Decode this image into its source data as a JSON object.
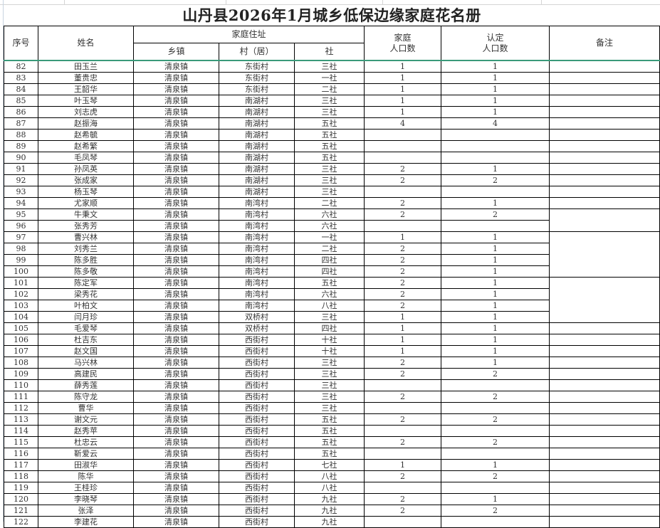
{
  "title": "山丹县2026年1月城乡低保边缘家庭花名册",
  "headers": {
    "seq": "序号",
    "name": "姓名",
    "address": "家庭住址",
    "town": "乡镇",
    "village": "村（居）",
    "she": "社",
    "household": "家庭\n人口数",
    "household_l1": "家庭",
    "household_l2": "人口数",
    "certified_l1": "认定",
    "certified_l2": "人口数",
    "remarks": "备注"
  },
  "rows": [
    [
      "82",
      "田玉兰",
      "清泉镇",
      "东街村",
      "三社",
      "1",
      "1"
    ],
    [
      "83",
      "董贵忠",
      "清泉镇",
      "东街村",
      "一社",
      "1",
      "1"
    ],
    [
      "84",
      "王韶华",
      "清泉镇",
      "东街村",
      "二社",
      "1",
      "1"
    ],
    [
      "85",
      "叶玉琴",
      "清泉镇",
      "南湖村",
      "三社",
      "1",
      "1"
    ],
    [
      "86",
      "刘志虎",
      "清泉镇",
      "南湖村",
      "三社",
      "1",
      "1"
    ],
    [
      "87",
      "赵振海",
      "清泉镇",
      "南湖村",
      "五社",
      "4",
      "4"
    ],
    [
      "88",
      "赵希毓",
      "清泉镇",
      "南湖村",
      "五社",
      "",
      ""
    ],
    [
      "89",
      "赵希繁",
      "清泉镇",
      "南湖村",
      "五社",
      "",
      ""
    ],
    [
      "90",
      "毛凤琴",
      "清泉镇",
      "南湖村",
      "五社",
      "",
      ""
    ],
    [
      "91",
      "孙凤英",
      "清泉镇",
      "南湖村",
      "三社",
      "2",
      "1"
    ],
    [
      "92",
      "张成家",
      "清泉镇",
      "南湖村",
      "三社",
      "2",
      "2"
    ],
    [
      "93",
      "杨玉琴",
      "清泉镇",
      "南湖村",
      "三社",
      "",
      ""
    ],
    [
      "94",
      "尤家顺",
      "清泉镇",
      "南湾村",
      "二社",
      "2",
      "1"
    ],
    [
      "95",
      "牛秉文",
      "清泉镇",
      "南湾村",
      "六社",
      "2",
      "2"
    ],
    [
      "96",
      "张秀芳",
      "清泉镇",
      "南湾村",
      "六社",
      "",
      ""
    ],
    [
      "97",
      "曹兴林",
      "清泉镇",
      "南湾村",
      "一社",
      "1",
      "1"
    ],
    [
      "98",
      "刘秀兰",
      "清泉镇",
      "南湾村",
      "二社",
      "2",
      "1"
    ],
    [
      "99",
      "陈多胜",
      "清泉镇",
      "南湾村",
      "四社",
      "2",
      "1"
    ],
    [
      "100",
      "陈多敬",
      "清泉镇",
      "南湾村",
      "四社",
      "2",
      "1"
    ],
    [
      "101",
      "陈定军",
      "清泉镇",
      "南湾村",
      "五社",
      "2",
      "1"
    ],
    [
      "102",
      "梁秀花",
      "清泉镇",
      "南湾村",
      "六社",
      "2",
      "1"
    ],
    [
      "103",
      "叶柏文",
      "清泉镇",
      "南湾村",
      "八社",
      "2",
      "1"
    ],
    [
      "104",
      "闫月珍",
      "清泉镇",
      "双桥村",
      "三社",
      "1",
      "1"
    ],
    [
      "105",
      "毛爱琴",
      "清泉镇",
      "双桥村",
      "四社",
      "1",
      "1"
    ],
    [
      "106",
      "杜吉东",
      "清泉镇",
      "西街村",
      "十社",
      "1",
      "1"
    ],
    [
      "107",
      "赵文国",
      "清泉镇",
      "西街村",
      "十社",
      "1",
      "1"
    ],
    [
      "108",
      "马兴林",
      "清泉镇",
      "西街村",
      "三社",
      "2",
      "1"
    ],
    [
      "109",
      "高建民",
      "清泉镇",
      "西街村",
      "三社",
      "2",
      "2"
    ],
    [
      "110",
      "薛秀莲",
      "清泉镇",
      "西街村",
      "三社",
      "",
      ""
    ],
    [
      "111",
      "陈守龙",
      "清泉镇",
      "西街村",
      "三社",
      "2",
      "2"
    ],
    [
      "112",
      "曹华",
      "清泉镇",
      "西街村",
      "三社",
      "",
      ""
    ],
    [
      "113",
      "谢文元",
      "清泉镇",
      "西街村",
      "五社",
      "2",
      "2"
    ],
    [
      "114",
      "赵秀苹",
      "清泉镇",
      "西街村",
      "五社",
      "",
      ""
    ],
    [
      "115",
      "杜忠云",
      "清泉镇",
      "西街村",
      "五社",
      "2",
      "2"
    ],
    [
      "116",
      "靳爱云",
      "清泉镇",
      "西街村",
      "五社",
      "",
      ""
    ],
    [
      "117",
      "田淑华",
      "清泉镇",
      "西街村",
      "七社",
      "1",
      "1"
    ],
    [
      "118",
      "陈华",
      "清泉镇",
      "西街村",
      "八社",
      "2",
      "2"
    ],
    [
      "119",
      "王桂珍",
      "清泉镇",
      "西街村",
      "八社",
      "",
      ""
    ],
    [
      "120",
      "李晓琴",
      "清泉镇",
      "西街村",
      "九社",
      "2",
      "1"
    ],
    [
      "121",
      "张泽",
      "清泉镇",
      "西街村",
      "九社",
      "2",
      "2"
    ],
    [
      "122",
      "李建花",
      "清泉镇",
      "西街村",
      "九社",
      "",
      ""
    ]
  ],
  "remark_merges": [
    [
      "95",
      2
    ],
    [
      "97",
      4
    ],
    [
      "101",
      4
    ]
  ]
}
